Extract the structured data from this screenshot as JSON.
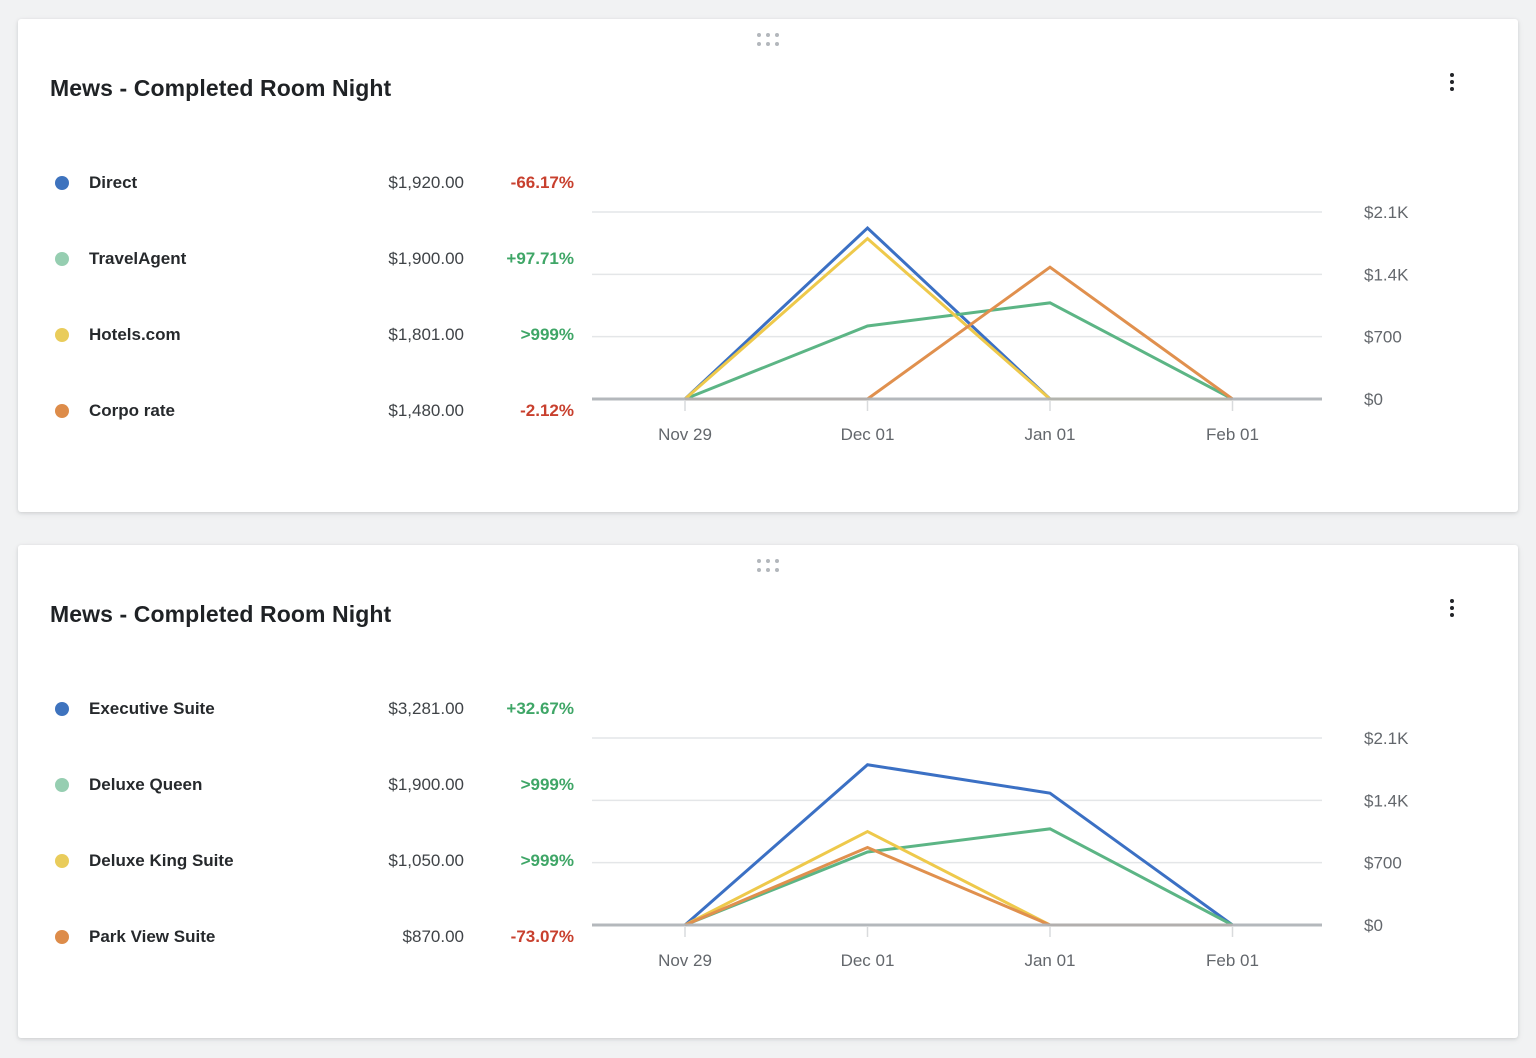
{
  "palette": {
    "positive": "#3fa667",
    "negative": "#c8402e",
    "accent_blue": "#3b70c4"
  },
  "cards": [
    {
      "title": "Mews - Completed Room Night",
      "drag_handle_icon": "drag-dots",
      "menu_icon": "kebab-vertical",
      "legend": [
        {
          "label": "Direct",
          "value": "$1,920.00",
          "change": "-66.17%",
          "change_color": "#c8402e",
          "dot_color": "#3e73be"
        },
        {
          "label": "TravelAgent",
          "value": "$1,900.00",
          "change": "+97.71%",
          "change_color": "#3fa667",
          "dot_color": "#96ceb1"
        },
        {
          "label": "Hotels.com",
          "value": "$1,801.00",
          "change": ">999%",
          "change_color": "#3fa667",
          "dot_color": "#e9cc5b"
        },
        {
          "label": "Corpo rate",
          "value": "$1,480.00",
          "change": "-2.12%",
          "change_color": "#c8402e",
          "dot_color": "#dd8c4a"
        }
      ]
    },
    {
      "title": "Mews - Completed Room Night",
      "drag_handle_icon": "drag-dots",
      "menu_icon": "kebab-vertical",
      "legend": [
        {
          "label": "Executive Suite",
          "value": "$3,281.00",
          "change": "+32.67%",
          "change_color": "#3fa667",
          "dot_color": "#3e73be"
        },
        {
          "label": "Deluxe Queen",
          "value": "$1,900.00",
          "change": ">999%",
          "change_color": "#3fa667",
          "dot_color": "#96ceb1"
        },
        {
          "label": "Deluxe King Suite",
          "value": "$1,050.00",
          "change": ">999%",
          "change_color": "#3fa667",
          "dot_color": "#e9cc5b"
        },
        {
          "label": "Park View Suite",
          "value": "$870.00",
          "change": "-73.07%",
          "change_color": "#c8402e",
          "dot_color": "#dd8c4a"
        }
      ]
    }
  ],
  "chart_data": [
    {
      "type": "line",
      "title": "Mews - Completed Room Night",
      "x": [
        "Nov 29",
        "Dec 01",
        "Jan 01",
        "Feb 01"
      ],
      "series": [
        {
          "name": "Direct",
          "color": "#3b70c4",
          "values": [
            0,
            1920,
            0,
            0
          ]
        },
        {
          "name": "TravelAgent",
          "color": "#5cb585",
          "values": [
            0,
            820,
            1080,
            0
          ]
        },
        {
          "name": "Hotels.com",
          "color": "#eec94b",
          "values": [
            0,
            1801,
            0,
            0
          ]
        },
        {
          "name": "Corpo rate",
          "color": "#e0904e",
          "values": [
            0,
            0,
            1480,
            0
          ]
        }
      ],
      "yticks": [
        {
          "label": "$2.1K",
          "value": 2100
        },
        {
          "label": "$1.4K",
          "value": 1400
        },
        {
          "label": "$700",
          "value": 700
        },
        {
          "label": "$0",
          "value": 0
        }
      ],
      "ylim": [
        0,
        2100
      ],
      "grid": true,
      "legend_position": "left",
      "y_axis_position": "right"
    },
    {
      "type": "line",
      "title": "Mews - Completed Room Night",
      "x": [
        "Nov 29",
        "Dec 01",
        "Jan 01",
        "Feb 01"
      ],
      "series": [
        {
          "name": "Executive Suite",
          "color": "#3b70c4",
          "values": [
            0,
            1800,
            1481,
            0
          ]
        },
        {
          "name": "Deluxe Queen",
          "color": "#5cb585",
          "values": [
            0,
            820,
            1080,
            0
          ]
        },
        {
          "name": "Deluxe King Suite",
          "color": "#eec94b",
          "values": [
            0,
            1050,
            0,
            0
          ]
        },
        {
          "name": "Park View Suite",
          "color": "#e0904e",
          "values": [
            0,
            870,
            0,
            0
          ]
        }
      ],
      "yticks": [
        {
          "label": "$2.1K",
          "value": 2100
        },
        {
          "label": "$1.4K",
          "value": 1400
        },
        {
          "label": "$700",
          "value": 700
        },
        {
          "label": "$0",
          "value": 0
        }
      ],
      "ylim": [
        0,
        2100
      ],
      "grid": true,
      "legend_position": "left",
      "y_axis_position": "right"
    }
  ]
}
